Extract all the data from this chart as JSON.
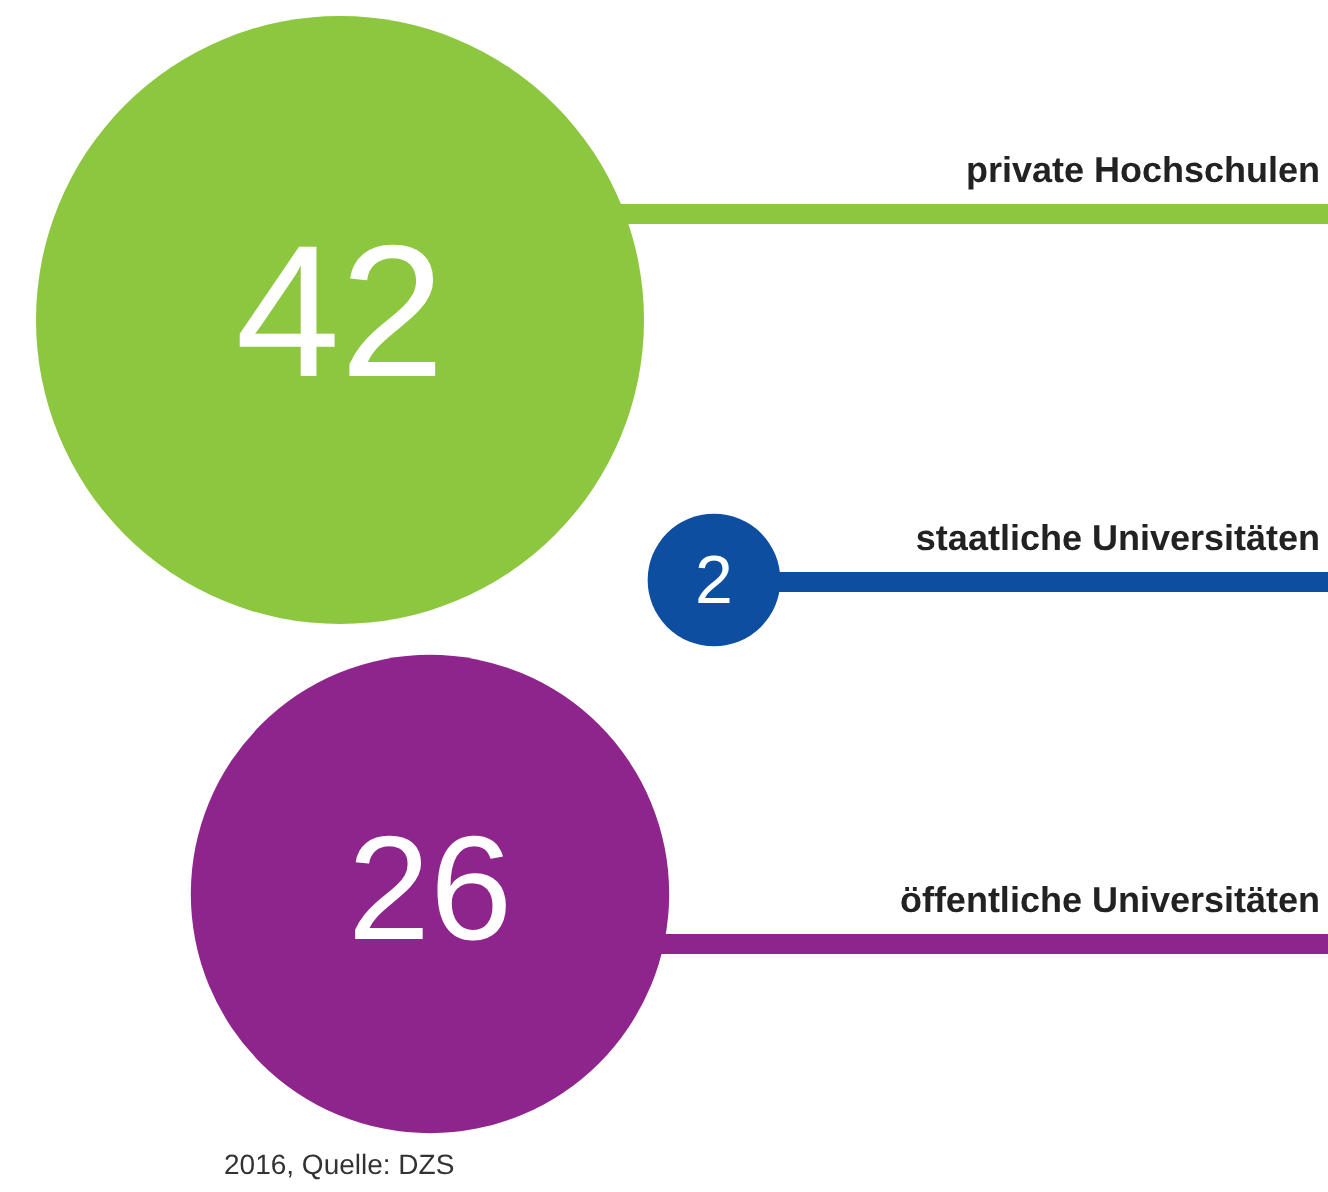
{
  "chart_data": {
    "type": "other",
    "categories": [
      "private Hochschulen",
      "staatliche Universitäten",
      "öffentliche Universitäten"
    ],
    "values": [
      42,
      2,
      26
    ],
    "colors": [
      "#8dc63f",
      "#0e4ea1",
      "#8e258d"
    ],
    "data_labels": true,
    "annotations": [
      "2016, Quelle: DZS"
    ]
  }
}
